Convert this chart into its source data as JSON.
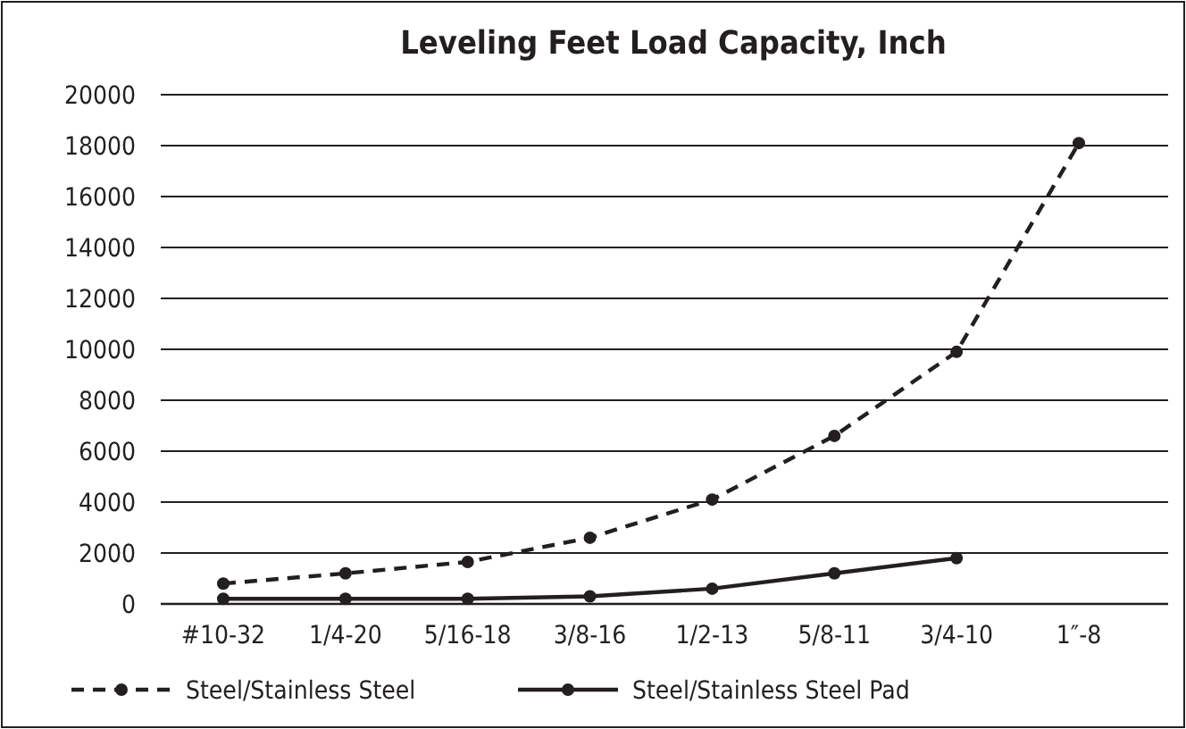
{
  "chart_data": {
    "type": "line",
    "title": "Leveling Feet Load Capacity, Inch",
    "categories": [
      "#10-32",
      "1/4-20",
      "5/16-18",
      "3/8-16",
      "1/2-13",
      "5/8-11",
      "3/4-10",
      "1″-8"
    ],
    "series": [
      {
        "name": "Steel/Stainless Steel",
        "color": "#231f20",
        "line_style": "dashed",
        "values": [
          800,
          1200,
          1650,
          2600,
          4100,
          6600,
          9900,
          18100
        ]
      },
      {
        "name": "Steel/Stainless Steel Pad",
        "color": "#231f20",
        "line_style": "solid",
        "values": [
          200,
          200,
          200,
          300,
          600,
          1200,
          1800,
          null
        ]
      }
    ],
    "ylim": [
      0,
      20000
    ],
    "yticks": [
      0,
      2000,
      4000,
      6000,
      8000,
      10000,
      12000,
      14000,
      16000,
      18000,
      20000
    ],
    "grid": "y",
    "legend": "bottom",
    "marker": "circle"
  }
}
